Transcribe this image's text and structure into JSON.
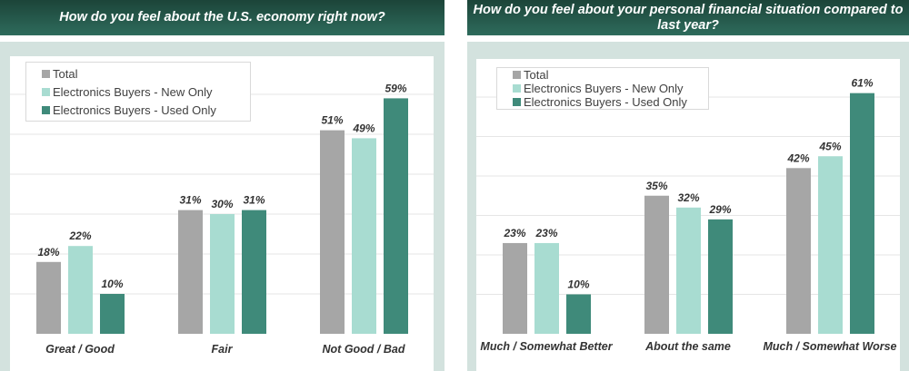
{
  "colors": {
    "total": "#a6a6a6",
    "new": "#a8dcd1",
    "used": "#3f8a7a"
  },
  "legend": [
    "Total",
    "Electronics Buyers - New Only",
    "Electronics Buyers - Used Only"
  ],
  "chart_data": [
    {
      "type": "bar",
      "title": "How do you feel about the U.S. economy right now?",
      "categories": [
        "Great / Good",
        "Fair",
        "Not Good / Bad"
      ],
      "series": [
        {
          "name": "Total",
          "values": [
            18,
            31,
            51
          ]
        },
        {
          "name": "Electronics Buyers - New Only",
          "values": [
            22,
            30,
            49
          ]
        },
        {
          "name": "Electronics Buyers - Used Only",
          "values": [
            10,
            31,
            59
          ]
        }
      ],
      "ylim": [
        0,
        60
      ],
      "grid": true,
      "legend_position": "top-left",
      "value_format": "percent"
    },
    {
      "type": "bar",
      "title": "How do you feel about your personal financial situation compared to last year?",
      "categories": [
        "Much / Somewhat Better",
        "About the same",
        "Much / Somewhat Worse"
      ],
      "series": [
        {
          "name": "Total",
          "values": [
            23,
            35,
            42
          ]
        },
        {
          "name": "Electronics Buyers - New Only",
          "values": [
            23,
            32,
            45
          ]
        },
        {
          "name": "Electronics Buyers - Used Only",
          "values": [
            10,
            29,
            61
          ]
        }
      ],
      "ylim": [
        0,
        60
      ],
      "grid": true,
      "legend_position": "top-left",
      "value_format": "percent"
    }
  ]
}
